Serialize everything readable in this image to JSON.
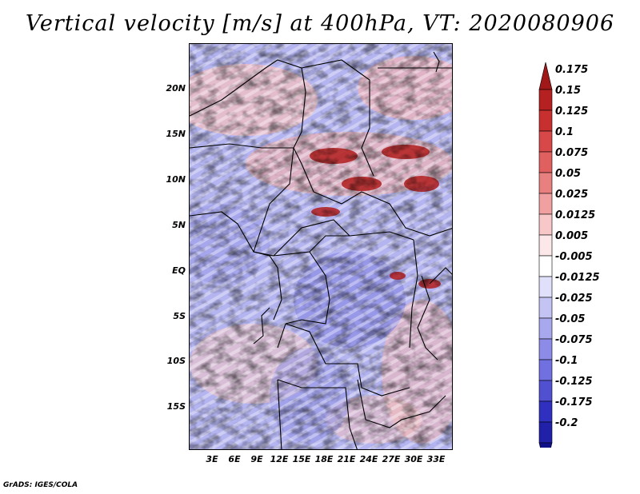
{
  "title": "Vertical velocity [m/s] at 400hPa, VT: 2020080906",
  "footer": "GrADS: IGES/COLA",
  "lat_labels": [
    "20N",
    "15N",
    "10N",
    "5N",
    "EQ",
    "5S",
    "10S",
    "15S"
  ],
  "lon_labels": [
    "3E",
    "6E",
    "9E",
    "12E",
    "15E",
    "18E",
    "21E",
    "24E",
    "27E",
    "30E",
    "33E"
  ],
  "colorbar": {
    "labels": [
      "0.175",
      "0.15",
      "0.125",
      "0.1",
      "0.075",
      "0.05",
      "0.025",
      "0.0125",
      "0.005",
      "-0.005",
      "-0.0125",
      "-0.025",
      "-0.05",
      "-0.075",
      "-0.1",
      "-0.125",
      "-0.175",
      "-0.2"
    ],
    "colors": [
      "#a01818",
      "#b52020",
      "#c83030",
      "#d84848",
      "#e06060",
      "#e88080",
      "#f0a0a0",
      "#f8c8c8",
      "#fce8e8",
      "#ffffff",
      "#e0e0fa",
      "#c4c4f4",
      "#a8a8ee",
      "#8c8ce8",
      "#7070e0",
      "#5050d0",
      "#3030c0",
      "#2020a8",
      "#10108a"
    ]
  }
}
